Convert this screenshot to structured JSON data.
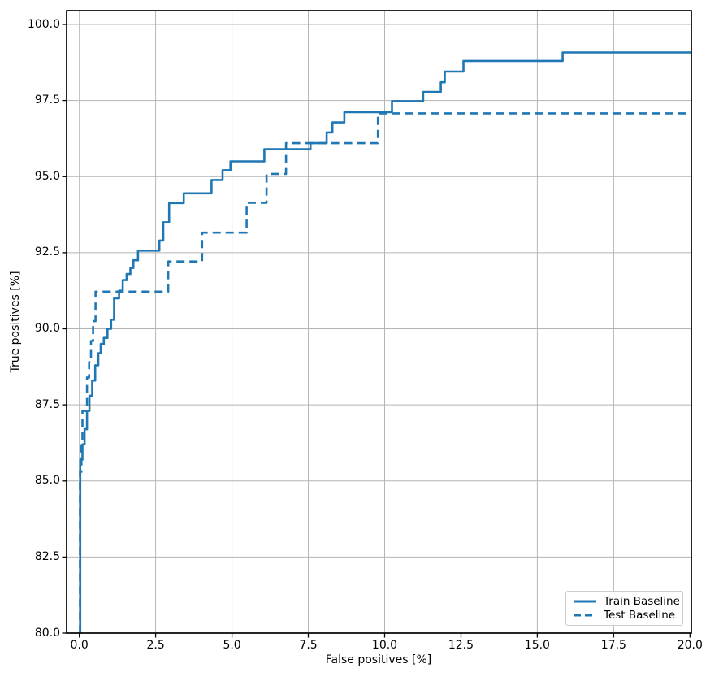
{
  "chart_data": {
    "type": "line",
    "subtype": "roc-step-curves",
    "title": "",
    "xlabel": "False positives [%]",
    "ylabel": "True positives [%]",
    "xlim": [
      -0.43,
      20.05
    ],
    "ylim": [
      80.0,
      100.45
    ],
    "grid": true,
    "grid_color": "#b4b4b4",
    "line_color": "#1f77b4",
    "x_ticks": [
      0.0,
      2.5,
      5.0,
      7.5,
      10.0,
      12.5,
      15.0,
      17.5,
      20.0
    ],
    "x_tick_labels": [
      "0.0",
      "2.5",
      "5.0",
      "7.5",
      "10.0",
      "12.5",
      "15.0",
      "17.5",
      "20.0"
    ],
    "y_ticks": [
      80.0,
      82.5,
      85.0,
      87.5,
      90.0,
      92.5,
      95.0,
      97.5,
      100.0
    ],
    "y_tick_labels": [
      "80.0",
      "82.5",
      "85.0",
      "87.5",
      "90.0",
      "92.5",
      "95.0",
      "97.5",
      "100.0"
    ],
    "legend": {
      "position": "lower right",
      "items": [
        {
          "label": "Train Baseline",
          "style": "solid"
        },
        {
          "label": "Test Baseline",
          "style": "dashed"
        }
      ]
    },
    "series": [
      {
        "name": "Train Baseline",
        "style": "solid",
        "start_y": 80.0,
        "end_x": 20.04,
        "steps": [
          [
            0.03,
            85.7
          ],
          [
            0.1,
            86.2
          ],
          [
            0.17,
            86.7
          ],
          [
            0.25,
            87.3
          ],
          [
            0.33,
            87.8
          ],
          [
            0.42,
            88.3
          ],
          [
            0.52,
            88.8
          ],
          [
            0.62,
            89.2
          ],
          [
            0.7,
            89.5
          ],
          [
            0.8,
            89.7
          ],
          [
            0.92,
            90.0
          ],
          [
            1.04,
            90.3
          ],
          [
            1.14,
            91.0
          ],
          [
            1.3,
            91.25
          ],
          [
            1.42,
            91.6
          ],
          [
            1.55,
            91.8
          ],
          [
            1.67,
            92.0
          ],
          [
            1.77,
            92.25
          ],
          [
            1.92,
            92.57
          ],
          [
            2.62,
            92.9
          ],
          [
            2.75,
            93.5
          ],
          [
            2.94,
            94.13
          ],
          [
            3.42,
            94.45
          ],
          [
            4.33,
            94.89
          ],
          [
            4.69,
            95.21
          ],
          [
            4.95,
            95.5
          ],
          [
            6.06,
            95.9
          ],
          [
            7.57,
            96.1
          ],
          [
            8.1,
            96.45
          ],
          [
            8.29,
            96.78
          ],
          [
            8.68,
            97.12
          ],
          [
            10.24,
            97.48
          ],
          [
            11.26,
            97.78
          ],
          [
            11.84,
            98.1
          ],
          [
            11.97,
            98.45
          ],
          [
            12.58,
            98.8
          ],
          [
            15.83,
            99.08
          ]
        ]
      },
      {
        "name": "Test Baseline",
        "style": "dashed",
        "start_y": 80.0,
        "end_x": 20.04,
        "steps": [
          [
            0.02,
            85.3
          ],
          [
            0.07,
            86.3
          ],
          [
            0.1,
            87.3
          ],
          [
            0.25,
            88.4
          ],
          [
            0.32,
            88.9
          ],
          [
            0.38,
            89.6
          ],
          [
            0.45,
            90.25
          ],
          [
            0.53,
            91.22
          ],
          [
            2.91,
            92.21
          ],
          [
            4.02,
            93.16
          ],
          [
            5.48,
            94.14
          ],
          [
            6.13,
            95.09
          ],
          [
            6.77,
            96.1
          ],
          [
            9.78,
            97.08
          ]
        ]
      }
    ]
  }
}
